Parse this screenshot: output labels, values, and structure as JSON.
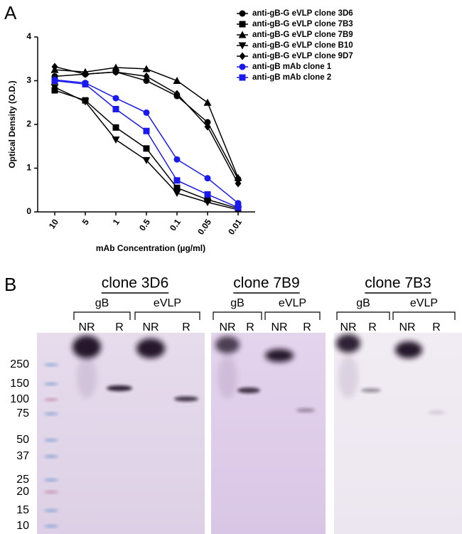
{
  "chart_data": {
    "type": "line",
    "panel_label": "A",
    "x_label": "mAb Concentration (µg/ml)",
    "y_label": "Optical Density (O.D.)",
    "categories": [
      "10",
      "5",
      "1",
      "0.5",
      "0.1",
      "0.05",
      "0.01"
    ],
    "ylim": [
      0,
      4
    ],
    "yticks": [
      0,
      1,
      2,
      3,
      4
    ],
    "grid": false,
    "legend": "top-right",
    "series": [
      {
        "name": "anti-gB-G eVLP clone 3D6",
        "color": "#000000",
        "marker": "circle",
        "values": [
          3.1,
          3.15,
          3.2,
          3.0,
          2.65,
          2.05,
          0.75
        ]
      },
      {
        "name": "anti-gB-G eVLP clone 7B3",
        "color": "#000000",
        "marker": "square",
        "values": [
          2.78,
          2.55,
          1.93,
          1.45,
          0.55,
          0.28,
          0.08
        ]
      },
      {
        "name": "anti-gB-G eVLP clone 7B9",
        "color": "#000000",
        "marker": "triangle",
        "values": [
          3.25,
          3.2,
          3.3,
          3.27,
          3.0,
          2.5,
          0.78
        ]
      },
      {
        "name": "anti-gB-G eVLP clone B10",
        "color": "#000000",
        "marker": "triangle-down",
        "values": [
          2.85,
          2.52,
          1.65,
          1.18,
          0.43,
          0.22,
          0.05
        ]
      },
      {
        "name": "anti-gB-G eVLP clone 9D7",
        "color": "#000000",
        "marker": "diamond",
        "values": [
          3.32,
          3.15,
          3.2,
          3.1,
          2.7,
          1.95,
          0.65
        ]
      },
      {
        "name": "anti-gB mAb clone 1",
        "color": "#1a1aee",
        "marker": "circle",
        "values": [
          3.02,
          2.95,
          2.6,
          2.27,
          1.2,
          0.77,
          0.2
        ]
      },
      {
        "name": "anti-gB mAb clone 2",
        "color": "#1a1aee",
        "marker": "square",
        "values": [
          3.0,
          2.92,
          2.35,
          1.85,
          0.72,
          0.4,
          0.1
        ]
      }
    ]
  },
  "blots": {
    "panel_label": "B",
    "markers": [
      250,
      150,
      100,
      75,
      50,
      37,
      25,
      20,
      15,
      10
    ],
    "panels": [
      {
        "title": "clone 3D6",
        "groups": [
          {
            "label": "gB",
            "lanes": [
              "NR",
              "R"
            ]
          },
          {
            "label": "eVLP",
            "lanes": [
              "NR",
              "R"
            ]
          }
        ]
      },
      {
        "title": "clone 7B9",
        "groups": [
          {
            "label": "gB",
            "lanes": [
              "NR",
              "R"
            ]
          },
          {
            "label": "eVLP",
            "lanes": [
              "NR",
              "R"
            ]
          }
        ]
      },
      {
        "title": "clone 7B3",
        "groups": [
          {
            "label": "gB",
            "lanes": [
              "NR",
              "R"
            ]
          },
          {
            "label": "eVLP",
            "lanes": [
              "NR",
              "R"
            ]
          }
        ]
      }
    ]
  }
}
